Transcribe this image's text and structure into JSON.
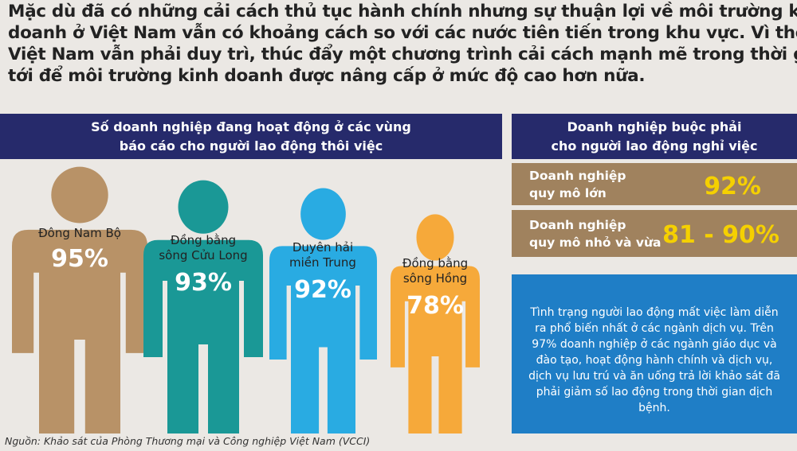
{
  "headline": [
    "Mặc dù đã có những cải cách thủ tục hành chính nhưng sự thuận lợi về môi trường kinh",
    "doanh ở Việt Nam vẫn có khoảng cách so với các nước tiên tiến trong khu vực. Vì thế,",
    "Việt Nam vẫn phải duy trì, thúc đẩy một chương trình cải cách mạnh mẽ trong thời gian",
    "tới để môi trường kinh doanh được nâng cấp ở mức độ cao hơn nữa."
  ],
  "regions": {
    "title": [
      "Số doanh nghiệp đang hoạt động ở các vùng",
      "báo cáo cho người lao động thôi việc"
    ],
    "items": [
      {
        "label": [
          "Đông Nam Bộ"
        ],
        "value": "95%"
      },
      {
        "label": [
          "Đồng bằng",
          "sông Cửu Long"
        ],
        "value": "93%"
      },
      {
        "label": [
          "Duyên hải",
          "miền Trung"
        ],
        "value": "92%"
      },
      {
        "label": [
          "Đồng bằng",
          "sông Hồng"
        ],
        "value": "78%"
      }
    ]
  },
  "layoffs": {
    "title": [
      "Doanh nghiệp buộc phải",
      "cho người lao động nghỉ việc"
    ],
    "rows": [
      {
        "label": [
          "Doanh nghiệp",
          "quy mô lớn"
        ],
        "value": "92%"
      },
      {
        "label": [
          "Doanh nghiệp",
          "quy mô nhỏ và vừa"
        ],
        "value": "81 - 90%"
      }
    ]
  },
  "note": "Tình trạng người lao động mất việc làm diễn ra phổ biến nhất ở các ngành dịch vụ. Trên 97% doanh nghiệp ở các ngành giáo dục và đào tạo, hoạt động hành chính và dịch vụ, dịch vụ lưu trú và ăn uống trả lời khảo sát đã phải giảm số lao động trong thời gian dịch bệnh.",
  "source": "Nguồn: Khảo sát của Phòng Thương mại và Công nghiệp Việt Nam (VCCI)"
}
